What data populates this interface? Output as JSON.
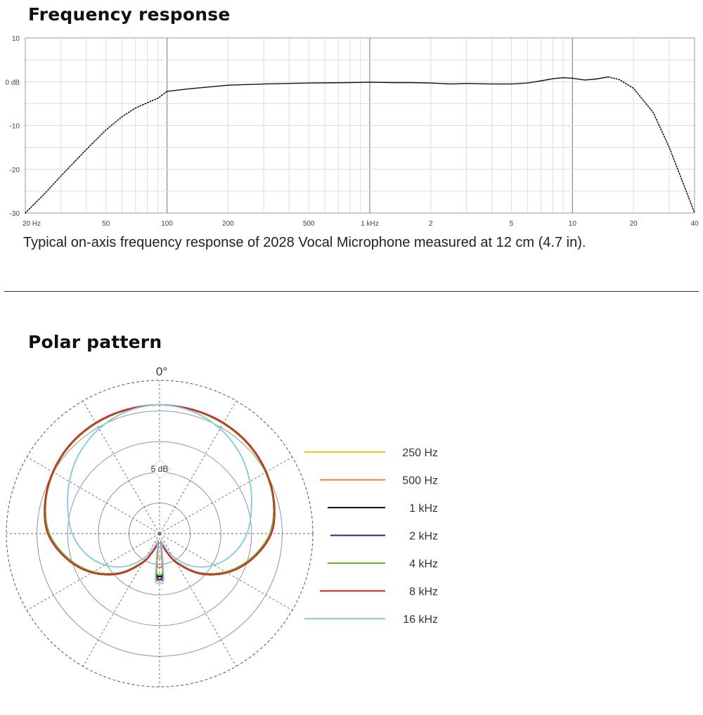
{
  "frequency_response": {
    "title": "Frequency response",
    "caption": "Typical on-axis frequency response of 2028 Vocal Microphone measured at 12 cm (4.7 in)."
  },
  "polar_pattern": {
    "title": "Polar pattern",
    "angle_label": "0°",
    "ring_label": "5 dB"
  },
  "chart_data": [
    {
      "type": "line",
      "title": "Frequency response",
      "x_scale": "log",
      "xlim": [
        20,
        40000
      ],
      "ylim": [
        -30,
        10
      ],
      "grid": true,
      "y_ticks": [
        {
          "value": 10,
          "label": "10"
        },
        {
          "value": 0,
          "label": "0 dB"
        },
        {
          "value": -10,
          "label": "-10"
        },
        {
          "value": -20,
          "label": "-20"
        },
        {
          "value": -30,
          "label": "-30"
        }
      ],
      "x_ticks": [
        {
          "value": 20,
          "label": "20 Hz"
        },
        {
          "value": 50,
          "label": "50"
        },
        {
          "value": 100,
          "label": "100"
        },
        {
          "value": 200,
          "label": "200"
        },
        {
          "value": 500,
          "label": "500"
        },
        {
          "value": 1000,
          "label": "1 kHz"
        },
        {
          "value": 2000,
          "label": "2"
        },
        {
          "value": 5000,
          "label": "5"
        },
        {
          "value": 10000,
          "label": "10"
        },
        {
          "value": 20000,
          "label": "20"
        },
        {
          "value": 40000,
          "label": "40"
        }
      ],
      "series": [
        {
          "style": "dotted",
          "color": "#111111",
          "x": [
            20,
            25,
            30,
            40,
            50,
            60,
            70,
            80,
            90,
            100
          ],
          "y": [
            -30,
            -25.5,
            -21.5,
            -15.5,
            -11,
            -8,
            -6,
            -4.8,
            -3.8,
            -2.2
          ]
        },
        {
          "style": "solid",
          "color": "#111111",
          "x": [
            100,
            130,
            200,
            300,
            500,
            800,
            1000,
            1300,
            1600,
            2000,
            2500,
            3000,
            4000,
            5000,
            6000,
            7000,
            8000,
            9000,
            10000,
            11500,
            13000,
            15000
          ],
          "y": [
            -2.2,
            -1.6,
            -0.8,
            -0.5,
            -0.3,
            -0.2,
            -0.1,
            -0.2,
            -0.2,
            -0.3,
            -0.5,
            -0.4,
            -0.5,
            -0.5,
            -0.3,
            0.2,
            0.7,
            0.9,
            0.8,
            0.4,
            0.6,
            1.1
          ]
        },
        {
          "style": "dotted",
          "color": "#111111",
          "x": [
            15000,
            17000,
            20000,
            25000,
            30000,
            35000,
            40000
          ],
          "y": [
            1.1,
            0.5,
            -1.5,
            -7,
            -15,
            -23,
            -30
          ]
        }
      ]
    },
    {
      "type": "polar",
      "title": "Polar pattern",
      "angle_zero_label": "0°",
      "ring_step_db": 5,
      "rings": 5,
      "spokes_every_deg": 30,
      "note": "",
      "angle_deg": [
        0,
        15,
        30,
        45,
        60,
        75,
        90,
        105,
        120,
        135,
        150,
        160,
        165,
        170,
        175,
        180
      ],
      "series": [
        {
          "name": "250 Hz",
          "color": "#f0c31e",
          "r": [
            0.84,
            0.835,
            0.83,
            0.82,
            0.8,
            0.77,
            0.72,
            0.62,
            0.5,
            0.36,
            0.21,
            0.12,
            0.08,
            0.06,
            0.15,
            0.16
          ]
        },
        {
          "name": "500 Hz",
          "color": "#e8843a",
          "r": [
            0.84,
            0.835,
            0.83,
            0.82,
            0.8,
            0.77,
            0.72,
            0.62,
            0.5,
            0.36,
            0.21,
            0.12,
            0.08,
            0.06,
            0.2,
            0.22
          ]
        },
        {
          "name": "1 kHz",
          "color": "#111111",
          "r": [
            0.84,
            0.835,
            0.83,
            0.82,
            0.8,
            0.77,
            0.72,
            0.62,
            0.5,
            0.36,
            0.21,
            0.12,
            0.08,
            0.06,
            0.25,
            0.28
          ]
        },
        {
          "name": "2 kHz",
          "color": "#1a2a8c",
          "r": [
            0.84,
            0.835,
            0.83,
            0.82,
            0.8,
            0.77,
            0.72,
            0.62,
            0.5,
            0.36,
            0.21,
            0.12,
            0.08,
            0.06,
            0.25,
            0.3
          ]
        },
        {
          "name": "4 kHz",
          "color": "#6ab22a",
          "r": [
            0.84,
            0.835,
            0.83,
            0.82,
            0.8,
            0.77,
            0.72,
            0.62,
            0.5,
            0.36,
            0.21,
            0.12,
            0.08,
            0.06,
            0.24,
            0.27
          ]
        },
        {
          "name": "8 kHz",
          "color": "#d42020",
          "r": [
            0.84,
            0.838,
            0.835,
            0.825,
            0.805,
            0.775,
            0.73,
            0.63,
            0.51,
            0.37,
            0.22,
            0.12,
            0.08,
            0.06,
            0.28,
            0.3
          ]
        },
        {
          "name": "16 kHz",
          "color": "#8ccbe3",
          "r": [
            0.84,
            0.825,
            0.79,
            0.74,
            0.68,
            0.62,
            0.57,
            0.5,
            0.41,
            0.3,
            0.17,
            0.08,
            0.05,
            0.08,
            0.3,
            0.32
          ]
        }
      ]
    }
  ]
}
